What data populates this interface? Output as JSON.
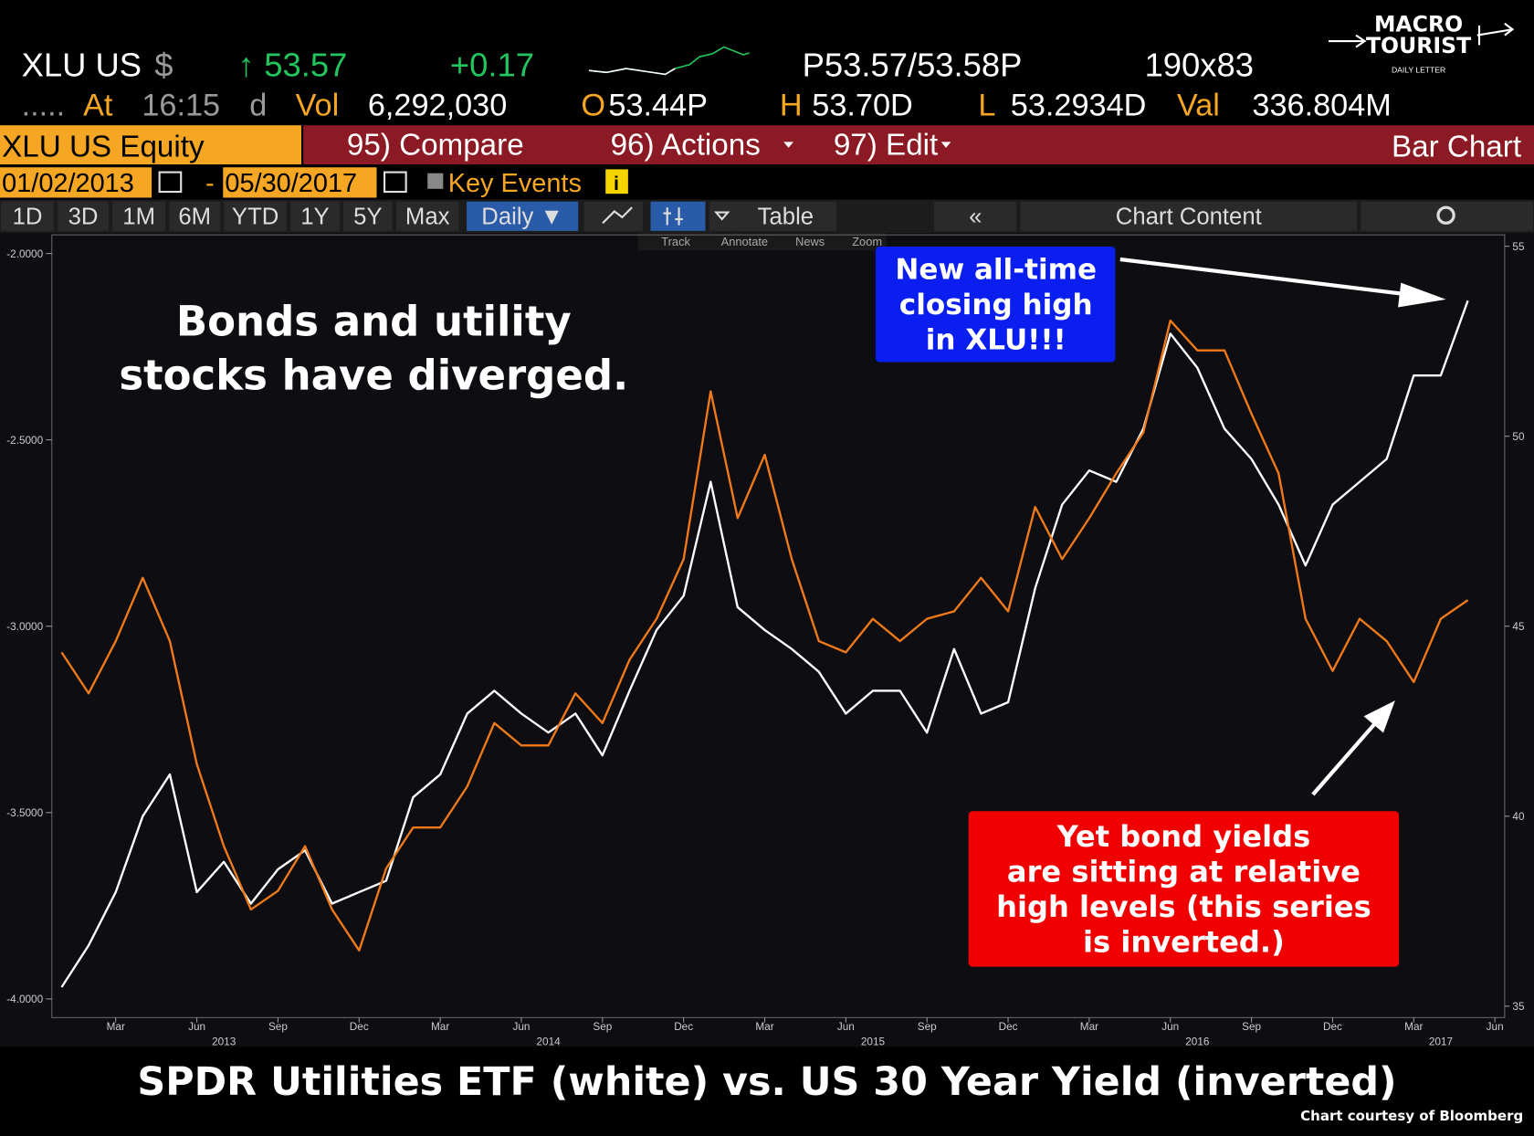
{
  "header": {
    "row1": [
      "XLU US",
      "$",
      "↑",
      "53.57",
      "+0.17",
      "P53.57/53.58P",
      "190x83"
    ],
    "row2": [
      ".....",
      "At",
      "16:15",
      "d",
      "Vol",
      "6,292,030",
      "O",
      "53.44P",
      "H",
      "53.70D",
      "L",
      "53.2934D",
      "Val",
      "336.804M"
    ],
    "menu": [
      "XLU US Equity",
      "95) Compare",
      "96) Actions",
      "97) Edit",
      "Bar Chart"
    ],
    "dates": [
      "01/02/2013",
      "-",
      "05/30/2017",
      "Key Events",
      "i"
    ],
    "buttons": [
      "1D",
      "3D",
      "1M",
      "6M",
      "YTD",
      "1Y",
      "5Y",
      "Max",
      "Daily ▼",
      "Table",
      "«",
      "Chart Content"
    ],
    "tools": [
      "Track",
      "Annotate",
      "News",
      "Zoom"
    ],
    "logo": [
      "MACRO",
      "TOURIST",
      "DAILY LETTER"
    ]
  },
  "chart_data": {
    "type": "line",
    "title": "SPDR Utilities ETF (white) vs. US 30 Year Yield (inverted)",
    "credit": "Chart courtesy of Bloomberg",
    "annotations": [
      {
        "lines": [
          "Bonds and utility",
          "stocks have diverged."
        ]
      },
      {
        "lines": [
          "New all-time",
          "closing high",
          "in XLU!!!"
        ]
      },
      {
        "lines": [
          "Yet bond yields",
          "are sitting at relative",
          "high levels (this series",
          "is inverted.)"
        ]
      }
    ],
    "x": [
      "2013-01",
      "2013-02",
      "2013-03",
      "2013-04",
      "2013-05",
      "2013-06",
      "2013-07",
      "2013-08",
      "2013-09",
      "2013-10",
      "2013-11",
      "2013-12",
      "2014-01",
      "2014-02",
      "2014-03",
      "2014-04",
      "2014-05",
      "2014-06",
      "2014-07",
      "2014-08",
      "2014-09",
      "2014-10",
      "2014-11",
      "2014-12",
      "2015-01",
      "2015-02",
      "2015-03",
      "2015-04",
      "2015-05",
      "2015-06",
      "2015-07",
      "2015-08",
      "2015-09",
      "2015-10",
      "2015-11",
      "2015-12",
      "2016-01",
      "2016-02",
      "2016-03",
      "2016-04",
      "2016-05",
      "2016-06",
      "2016-07",
      "2016-08",
      "2016-09",
      "2016-10",
      "2016-11",
      "2016-12",
      "2017-01",
      "2017-02",
      "2017-03",
      "2017-04",
      "2017-05"
    ],
    "xlim": [
      "2013-01",
      "2017-06"
    ],
    "xticks": [
      {
        "value": "2013-03",
        "label": "Mar"
      },
      {
        "value": "2013-06",
        "label": "Jun"
      },
      {
        "value": "2013-09",
        "label": "Sep"
      },
      {
        "value": "2013-12",
        "label": "Dec"
      },
      {
        "value": "2014-03",
        "label": "Mar"
      },
      {
        "value": "2014-06",
        "label": "Jun"
      },
      {
        "value": "2014-09",
        "label": "Sep"
      },
      {
        "value": "2014-12",
        "label": "Dec"
      },
      {
        "value": "2015-03",
        "label": "Mar"
      },
      {
        "value": "2015-06",
        "label": "Jun"
      },
      {
        "value": "2015-09",
        "label": "Sep"
      },
      {
        "value": "2015-12",
        "label": "Dec"
      },
      {
        "value": "2016-03",
        "label": "Mar"
      },
      {
        "value": "2016-06",
        "label": "Jun"
      },
      {
        "value": "2016-09",
        "label": "Sep"
      },
      {
        "value": "2016-12",
        "label": "Dec"
      },
      {
        "value": "2017-03",
        "label": "Mar"
      },
      {
        "value": "2017-06",
        "label": "Jun"
      }
    ],
    "xyears": [
      {
        "value": "2013-07",
        "label": "2013"
      },
      {
        "value": "2014-07",
        "label": "2014"
      },
      {
        "value": "2015-07",
        "label": "2015"
      },
      {
        "value": "2016-07",
        "label": "2016"
      },
      {
        "value": "2017-04",
        "label": "2017"
      }
    ],
    "ylim": [
      -4.05,
      -1.95
    ],
    "yticks": [
      {
        "value": -4,
        "label": "-4.0000"
      },
      {
        "value": -3.5,
        "label": "-3.5000"
      },
      {
        "value": -3,
        "label": "-3.0000"
      },
      {
        "value": -2.5,
        "label": "-2.5000"
      },
      {
        "value": -2,
        "label": "-2.0000"
      }
    ],
    "y2lim": [
      34.7,
      55.3
    ],
    "y2ticks": [
      35,
      40,
      45,
      50,
      55
    ],
    "series": [
      {
        "name": "SPDR Utilities ETF",
        "color": "#ffffff",
        "axis": "y2",
        "values": [
          35.5,
          36.6,
          38.0,
          40.0,
          41.1,
          38.0,
          38.8,
          37.7,
          38.6,
          39.1,
          37.7,
          38.0,
          38.3,
          40.5,
          41.1,
          42.7,
          43.3,
          42.7,
          42.2,
          42.7,
          41.6,
          43.3,
          44.9,
          45.8,
          48.8,
          45.5,
          44.9,
          44.4,
          43.8,
          42.7,
          43.3,
          43.3,
          42.2,
          44.4,
          42.7,
          43.0,
          46.0,
          48.2,
          49.1,
          48.8,
          50.2,
          52.7,
          51.8,
          50.2,
          49.4,
          48.2,
          46.6,
          48.2,
          48.8,
          49.4,
          51.6,
          51.6,
          53.57
        ]
      },
      {
        "name": "US 30 Year Yield (inverted)",
        "color": "#f07a1a",
        "values": [
          -3.07,
          -3.18,
          -3.04,
          -2.87,
          -3.04,
          -3.37,
          -3.59,
          -3.76,
          -3.71,
          -3.59,
          -3.76,
          -3.87,
          -3.65,
          -3.54,
          -3.54,
          -3.43,
          -3.26,
          -3.32,
          -3.32,
          -3.18,
          -3.26,
          -3.09,
          -2.98,
          -2.82,
          -2.37,
          -2.71,
          -2.54,
          -2.82,
          -3.04,
          -3.07,
          -2.98,
          -3.04,
          -2.98,
          -2.96,
          -2.87,
          -2.96,
          -2.68,
          -2.82,
          -2.71,
          -2.59,
          -2.48,
          -2.18,
          -2.26,
          -2.26,
          -2.43,
          -2.59,
          -2.98,
          -3.12,
          -2.98,
          -3.04,
          -3.15,
          -2.98,
          -2.93
        ]
      }
    ]
  }
}
